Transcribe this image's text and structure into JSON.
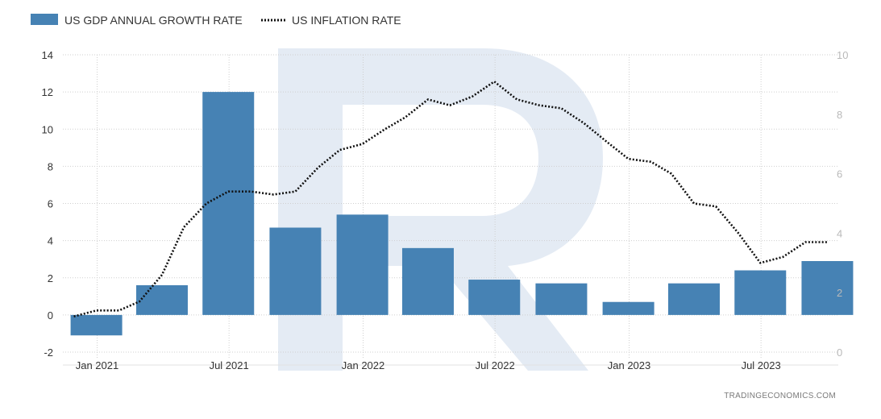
{
  "chart_data": {
    "type": "bar",
    "title": "",
    "credit": "TRADINGECONOMICS.COM",
    "legend_position": "top-left",
    "grid": true,
    "x_labels": [
      "Jan 2021",
      "Jul 2021",
      "Jan 2022",
      "Jul 2022",
      "Jan 2023",
      "Jul 2023"
    ],
    "left_axis": {
      "ticks": [
        14,
        12,
        10,
        8,
        6,
        4,
        2,
        0,
        -2
      ],
      "ylim": [
        -2,
        14
      ]
    },
    "right_axis": {
      "ticks": [
        10,
        8,
        6,
        4,
        2,
        0
      ],
      "ylim": [
        0,
        10
      ]
    },
    "series": [
      {
        "name": "US GDP ANNUAL GROWTH RATE",
        "type": "bar",
        "axis": "left",
        "color": "#4682b4",
        "x": [
          "2020-12-31",
          "2021-03-31",
          "2021-06-30",
          "2021-09-30",
          "2021-12-31",
          "2022-03-31",
          "2022-06-30",
          "2022-09-30",
          "2022-12-31",
          "2023-03-31",
          "2023-06-30",
          "2023-09-30"
        ],
        "values": [
          -1.1,
          1.6,
          12.0,
          4.7,
          5.4,
          3.6,
          1.9,
          1.7,
          0.7,
          1.7,
          2.4,
          2.9
        ]
      },
      {
        "name": "US INFLATION RATE",
        "type": "line",
        "style": "dotted",
        "axis": "right",
        "color": "#111111",
        "x": [
          "2020-11-30",
          "2020-12-31",
          "2021-01-31",
          "2021-02-28",
          "2021-03-31",
          "2021-04-30",
          "2021-05-31",
          "2021-06-30",
          "2021-07-31",
          "2021-08-31",
          "2021-09-30",
          "2021-10-31",
          "2021-11-30",
          "2021-12-31",
          "2022-01-31",
          "2022-02-28",
          "2022-03-31",
          "2022-04-30",
          "2022-05-31",
          "2022-06-30",
          "2022-07-31",
          "2022-08-31",
          "2022-09-30",
          "2022-10-31",
          "2022-11-30",
          "2022-12-31",
          "2023-01-31",
          "2023-02-28",
          "2023-03-31",
          "2023-04-30",
          "2023-05-31",
          "2023-06-30",
          "2023-07-31",
          "2023-08-31",
          "2023-09-30"
        ],
        "values": [
          1.2,
          1.4,
          1.4,
          1.7,
          2.6,
          4.2,
          5.0,
          5.4,
          5.4,
          5.3,
          5.4,
          6.2,
          6.8,
          7.0,
          7.5,
          7.9,
          8.5,
          8.3,
          8.6,
          9.1,
          8.5,
          8.3,
          8.2,
          7.7,
          7.1,
          6.5,
          6.4,
          6.0,
          5.0,
          4.9,
          4.0,
          3.0,
          3.2,
          3.7,
          3.7
        ]
      }
    ]
  }
}
